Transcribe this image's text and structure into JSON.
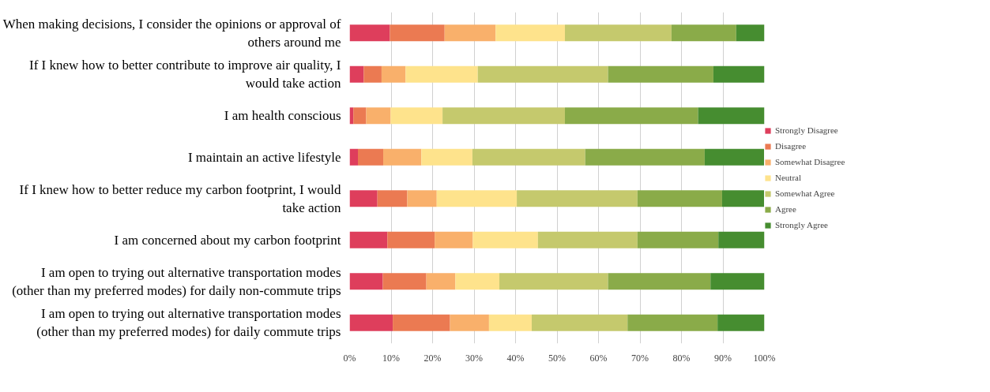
{
  "chart_data": {
    "type": "bar",
    "orientation": "horizontal",
    "stacked": true,
    "categories": [
      "When making decisions, I consider the opinions or approval of others around me",
      "If I knew how to better contribute to improve air quality, I would take action",
      "I am health conscious",
      "I maintain an active lifestyle",
      "If I knew how to better reduce my carbon footprint, I would take action",
      "I am concerned about my carbon footprint",
      "I am open to trying out alternative transportation modes (other than my preferred modes) for daily non-commute trips",
      "I am open to trying out alternative transportation modes (other than my preferred modes) for daily commute trips"
    ],
    "series": [
      {
        "name": "Strongly Disagree",
        "color": "#de3e5c",
        "values": [
          9.7,
          3.4,
          0.9,
          2.0,
          6.7,
          9.1,
          8.0,
          10.4
        ]
      },
      {
        "name": "Disagree",
        "color": "#eb7a52",
        "values": [
          13.2,
          4.3,
          3.1,
          6.1,
          7.2,
          11.4,
          10.5,
          13.8
        ]
      },
      {
        "name": "Somewhat Disagree",
        "color": "#f9b06b",
        "values": [
          12.3,
          5.8,
          5.9,
          9.2,
          7.1,
          9.2,
          7.0,
          9.4
        ]
      },
      {
        "name": "Neutral",
        "color": "#fee38c",
        "values": [
          16.7,
          17.4,
          12.5,
          12.3,
          19.3,
          15.7,
          10.6,
          10.3
        ]
      },
      {
        "name": "Somewhat Agree",
        "color": "#c5c96d",
        "values": [
          25.7,
          31.4,
          29.5,
          27.2,
          29.1,
          24.0,
          26.2,
          23.1
        ]
      },
      {
        "name": "Agree",
        "color": "#8aab49",
        "values": [
          15.6,
          25.4,
          32.1,
          28.8,
          20.4,
          19.5,
          24.7,
          21.7
        ]
      },
      {
        "name": "Strongly Agree",
        "color": "#468d30",
        "values": [
          6.8,
          12.3,
          16.0,
          14.4,
          10.2,
          11.1,
          13.0,
          11.3
        ]
      }
    ],
    "xlim": [
      0,
      100
    ],
    "xticks": [
      {
        "value": 0,
        "label": "0%"
      },
      {
        "value": 10,
        "label": "10%"
      },
      {
        "value": 20,
        "label": "20%"
      },
      {
        "value": 30,
        "label": "30%"
      },
      {
        "value": 40,
        "label": "40%"
      },
      {
        "value": 50,
        "label": "50%"
      },
      {
        "value": 60,
        "label": "60%"
      },
      {
        "value": 70,
        "label": "70%"
      },
      {
        "value": 80,
        "label": "80%"
      },
      {
        "value": 90,
        "label": "90%"
      },
      {
        "value": 100,
        "label": "100%"
      }
    ],
    "grid": "x",
    "legend": "right"
  }
}
